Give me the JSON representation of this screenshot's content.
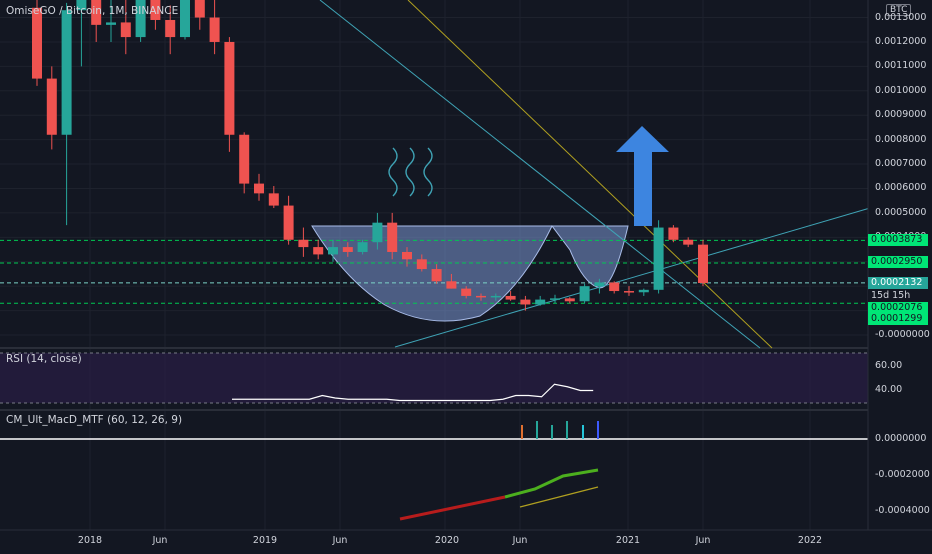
{
  "header": {
    "symbol_line": "OmiseGO / Bitcoin, 1M, BINANCE",
    "currency_badge": "BTC"
  },
  "colors": {
    "background": "#131722",
    "up": "#26a69a",
    "down": "#ef5350",
    "grid": "#1e222d",
    "support": "#00c853",
    "cup": "#7b97d4",
    "arrow": "#3d85e0",
    "rsi_band": "#2a1e45",
    "macd_red": "#b71c1c",
    "macd_green": "#4caf1e"
  },
  "chart_data": [
    {
      "type": "candlestick",
      "series": [
        {
          "x": "2017-06",
          "open": 0.00134,
          "high": 0.00145,
          "low": 0.00102,
          "close": 0.00105
        },
        {
          "x": "2017-07",
          "open": 0.00105,
          "high": 0.0011,
          "low": 0.00076,
          "close": 0.00082
        },
        {
          "x": "2017-08",
          "open": 0.00082,
          "high": 0.00136,
          "low": 0.00045,
          "close": 0.00133
        },
        {
          "x": "2017-09",
          "open": 0.00133,
          "high": 0.00145,
          "low": 0.0011,
          "close": 0.00145
        },
        {
          "x": "2017-10",
          "open": 0.00145,
          "high": 0.00145,
          "low": 0.0012,
          "close": 0.00127
        },
        {
          "x": "2017-11",
          "open": 0.00127,
          "high": 0.00145,
          "low": 0.0012,
          "close": 0.00128
        },
        {
          "x": "2017-12",
          "open": 0.00128,
          "high": 0.00145,
          "low": 0.00115,
          "close": 0.00122
        },
        {
          "x": "2018-01",
          "open": 0.00122,
          "high": 0.00145,
          "low": 0.0012,
          "close": 0.00145
        },
        {
          "x": "2018-02",
          "open": 0.00145,
          "high": 0.00145,
          "low": 0.00125,
          "close": 0.00129
        },
        {
          "x": "2018-03",
          "open": 0.00129,
          "high": 0.00135,
          "low": 0.00115,
          "close": 0.00122
        },
        {
          "x": "2018-04",
          "open": 0.00122,
          "high": 0.00145,
          "low": 0.00121,
          "close": 0.00145
        },
        {
          "x": "2018-05",
          "open": 0.00145,
          "high": 0.00145,
          "low": 0.00125,
          "close": 0.0013
        },
        {
          "x": "2018-06",
          "open": 0.0013,
          "high": 0.00138,
          "low": 0.00115,
          "close": 0.0012
        },
        {
          "x": "2018-07",
          "open": 0.0012,
          "high": 0.00122,
          "low": 0.00075,
          "close": 0.00082
        },
        {
          "x": "2018-08",
          "open": 0.00082,
          "high": 0.00083,
          "low": 0.00058,
          "close": 0.00062
        },
        {
          "x": "2018-09",
          "open": 0.00062,
          "high": 0.00066,
          "low": 0.00055,
          "close": 0.00058
        },
        {
          "x": "2018-10",
          "open": 0.00058,
          "high": 0.00061,
          "low": 0.00052,
          "close": 0.00053
        },
        {
          "x": "2018-11",
          "open": 0.00053,
          "high": 0.00057,
          "low": 0.00037,
          "close": 0.00039
        },
        {
          "x": "2018-12",
          "open": 0.00039,
          "high": 0.00044,
          "low": 0.00032,
          "close": 0.00036
        },
        {
          "x": "2019-01",
          "open": 0.00036,
          "high": 0.00039,
          "low": 0.00031,
          "close": 0.00033
        },
        {
          "x": "2019-02",
          "open": 0.00033,
          "high": 0.00039,
          "low": 0.0003,
          "close": 0.00036
        },
        {
          "x": "2019-03",
          "open": 0.00036,
          "high": 0.00038,
          "low": 0.00032,
          "close": 0.00034
        },
        {
          "x": "2019-04",
          "open": 0.00034,
          "high": 0.00039,
          "low": 0.00033,
          "close": 0.00038
        },
        {
          "x": "2019-05",
          "open": 0.00038,
          "high": 0.0005,
          "low": 0.00035,
          "close": 0.00046
        },
        {
          "x": "2019-06",
          "open": 0.00046,
          "high": 0.0005,
          "low": 0.00031,
          "close": 0.00034
        },
        {
          "x": "2019-07",
          "open": 0.00034,
          "high": 0.00036,
          "low": 0.00028,
          "close": 0.00031
        },
        {
          "x": "2019-08",
          "open": 0.00031,
          "high": 0.00033,
          "low": 0.00026,
          "close": 0.00027
        },
        {
          "x": "2019-09",
          "open": 0.00027,
          "high": 0.00029,
          "low": 0.00021,
          "close": 0.00022
        },
        {
          "x": "2019-10",
          "open": 0.00022,
          "high": 0.00025,
          "low": 0.00019,
          "close": 0.00019
        },
        {
          "x": "2019-11",
          "open": 0.00019,
          "high": 0.0002,
          "low": 0.00015,
          "close": 0.00016
        },
        {
          "x": "2019-12",
          "open": 0.00016,
          "high": 0.00017,
          "low": 0.00014,
          "close": 0.000155
        },
        {
          "x": "2020-01",
          "open": 0.000155,
          "high": 0.00017,
          "low": 0.00014,
          "close": 0.00016
        },
        {
          "x": "2020-02",
          "open": 0.00016,
          "high": 0.00018,
          "low": 0.00014,
          "close": 0.000145
        },
        {
          "x": "2020-03",
          "open": 0.000145,
          "high": 0.00016,
          "low": 0.0001,
          "close": 0.000125
        },
        {
          "x": "2020-04",
          "open": 0.000125,
          "high": 0.00016,
          "low": 0.00012,
          "close": 0.000145
        },
        {
          "x": "2020-05",
          "open": 0.000145,
          "high": 0.000165,
          "low": 0.00013,
          "close": 0.00015
        },
        {
          "x": "2020-06",
          "open": 0.00015,
          "high": 0.000155,
          "low": 0.00013,
          "close": 0.000138
        },
        {
          "x": "2020-07",
          "open": 0.000138,
          "high": 0.00021,
          "low": 0.00013,
          "close": 0.0002
        },
        {
          "x": "2020-08",
          "open": 0.0002,
          "high": 0.00023,
          "low": 0.00017,
          "close": 0.000215
        },
        {
          "x": "2020-09",
          "open": 0.000215,
          "high": 0.00022,
          "low": 0.00017,
          "close": 0.00018
        },
        {
          "x": "2020-10",
          "open": 0.00018,
          "high": 0.0002,
          "low": 0.00016,
          "close": 0.000175
        },
        {
          "x": "2020-11",
          "open": 0.000175,
          "high": 0.00019,
          "low": 0.00016,
          "close": 0.000185
        },
        {
          "x": "2020-12",
          "open": 0.000185,
          "high": 0.00047,
          "low": 0.00017,
          "close": 0.00044
        },
        {
          "x": "2021-01",
          "open": 0.00044,
          "high": 0.00045,
          "low": 0.00038,
          "close": 0.00039
        },
        {
          "x": "2021-02",
          "open": 0.00039,
          "high": 0.0004,
          "low": 0.00036,
          "close": 0.00037
        },
        {
          "x": "2021-03",
          "open": 0.00037,
          "high": 0.00039,
          "low": 0.0002,
          "close": 0.000213
        }
      ],
      "y_axis_labels": [
        "0.0013000",
        "0.0012000",
        "0.0011000",
        "0.0010000",
        "0.0009000",
        "0.0008000",
        "0.0007000",
        "0.0006000",
        "0.0005000",
        "0.0004000",
        "0.0003000",
        "0.0002000",
        "0.0001000",
        "-0.0000000"
      ],
      "price_badges": [
        "0.0003873",
        "0.0002950",
        "0.0002132",
        "15d 15h",
        "0.0002076",
        "0.0001299"
      ],
      "x_axis_labels": [
        "2018",
        "Jun",
        "2019",
        "Jun",
        "2020",
        "Jun",
        "2021",
        "Jun",
        "2022"
      ]
    },
    {
      "type": "line",
      "title": "RSI (14, close)",
      "y_axis_labels": [
        "60.00",
        "40.00"
      ],
      "values": [
        33,
        33,
        33,
        33,
        33,
        33,
        33,
        36,
        34,
        33,
        33,
        33,
        33,
        32,
        32,
        32,
        32,
        32,
        32,
        32,
        32,
        33,
        36,
        36,
        35,
        45,
        43,
        40,
        40
      ]
    },
    {
      "type": "histogram",
      "title": "CM_Ult_MacD_MTF (60, 12, 26, 9)",
      "y_axis_labels": [
        "0.0000000",
        "-0.0002000",
        "-0.0004000"
      ]
    }
  ]
}
